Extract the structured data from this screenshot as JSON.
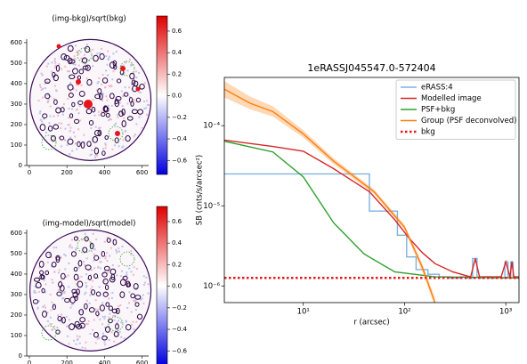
{
  "chart_data": [
    {
      "type": "image",
      "title": "(img-bkg)/sqrt(bkg)",
      "xlim": [
        -14,
        635
      ],
      "ylim": [
        0,
        617
      ],
      "xticks": [
        0,
        200,
        400,
        600
      ],
      "yticks": [
        0,
        100,
        200,
        300,
        400,
        500,
        600
      ],
      "cbar_lim": [
        -0.73,
        0.74
      ],
      "cbar_ticks": [
        0.6,
        0.4,
        0.2,
        {
          "value": 0,
          "label": "0.0"
        },
        {
          "value": -0.2,
          "label": "−0.2"
        },
        {
          "value": -0.4,
          "label": "−0.4"
        },
        {
          "value": -0.6,
          "label": "−0.6"
        }
      ]
    },
    {
      "type": "image",
      "title": "(img-model)/sqrt(model)",
      "xlim": [
        -14,
        635
      ],
      "ylim": [
        0,
        617
      ],
      "xticks": [
        0,
        200,
        400,
        600
      ],
      "yticks": [
        0,
        100,
        200,
        300,
        400,
        500,
        600
      ],
      "cbar_lim": [
        -0.73,
        0.74
      ],
      "cbar_ticks": [
        0.6,
        0.4,
        0.2,
        {
          "value": 0,
          "label": "0.0"
        },
        {
          "value": -0.2,
          "label": "−0.2"
        },
        {
          "value": -0.4,
          "label": "−0.4"
        },
        {
          "value": -0.6,
          "label": "−0.6"
        }
      ]
    },
    {
      "type": "line",
      "title": "1eRASSJ045547.0-572404",
      "x_label": "r (arcsec)",
      "y_label": "SB (cnts/s/arcsec²)",
      "log_x": true,
      "log_y": true,
      "legend": "upper right",
      "xlim": [
        1.66,
        1350
      ],
      "ylim": [
        6.2e-07,
        0.0004
      ],
      "xticks": [
        {
          "value": 10,
          "label": "10¹"
        },
        {
          "value": 100,
          "label": "10²"
        },
        {
          "value": 1000,
          "label": "10³"
        }
      ],
      "yticks": [
        {
          "value": 1e-06,
          "label": "10⁻⁶"
        },
        {
          "value": 1e-05,
          "label": "10⁻⁵"
        },
        {
          "value": 0.0001,
          "label": "10⁻⁴"
        }
      ],
      "series": [
        {
          "name": "eRASS:4",
          "color": "#7fb2e0",
          "style": "steps",
          "x": [
            1.66,
            45,
            85,
            105,
            130,
            170,
            220,
            280,
            350,
            420,
            470,
            520,
            560,
            620,
            700,
            800,
            900,
            980,
            1050,
            1120,
            1180,
            1250,
            1350
          ],
          "values": [
            2.5e-05,
            8.6e-06,
            4.3e-06,
            2.3e-06,
            1.6e-06,
            1.4e-06,
            1.3e-06,
            1.25e-06,
            1.3e-06,
            1.25e-06,
            2.2e-06,
            1.3e-06,
            1.25e-06,
            1.3e-06,
            1.25e-06,
            1.3e-06,
            1.25e-06,
            2e-06,
            1.3e-06,
            2e-06,
            1.3e-06,
            1.25e-06,
            1.25e-06
          ]
        },
        {
          "name": "Modelled image",
          "color": "#d62728",
          "style": "line",
          "x": [
            1.66,
            5,
            10,
            20,
            45,
            80,
            110,
            150,
            200,
            300,
            400,
            450,
            500,
            550,
            600,
            700,
            800,
            900,
            1000,
            1100,
            1150,
            1200,
            1350
          ],
          "values": [
            6.6e-05,
            5.5e-05,
            4.8e-05,
            2.9e-05,
            1.5e-05,
            6.7e-06,
            4e-06,
            2.6e-06,
            1.9e-06,
            1.5e-06,
            1.35e-06,
            1.3e-06,
            2.2e-06,
            1.3e-06,
            1.3e-06,
            1.3e-06,
            1.3e-06,
            1.3e-06,
            2e-06,
            1.3e-06,
            2e-06,
            1.3e-06,
            1.3e-06
          ]
        },
        {
          "name": "PSF+bkg",
          "color": "#2ca02c",
          "style": "line",
          "x": [
            1.66,
            5,
            10,
            20,
            40,
            80,
            200,
            1350
          ],
          "values": [
            6.4e-05,
            4.7e-05,
            2.3e-05,
            6.1e-06,
            2.5e-06,
            1.5e-06,
            1.3e-06,
            1.26e-06
          ]
        },
        {
          "name": "Group (PSF deconvolved)",
          "color": "#ff7f0e",
          "style": "line",
          "x": [
            1.66,
            3,
            5,
            10,
            20,
            50,
            100,
            150,
            200
          ],
          "values": [
            0.000285,
            0.00019,
            0.00015,
            7.9e-05,
            3.6e-05,
            1.5e-05,
            5.4e-06,
            1.7e-06,
            6.2e-07
          ],
          "upper": [
            0.00036,
            0.00023,
            0.000175,
            8.8e-05,
            3.9e-05,
            1.6e-05,
            5.8e-06,
            1.9e-06,
            7e-07
          ],
          "lower": [
            0.000225,
            0.00016,
            0.00013,
            7.1e-05,
            3.3e-05,
            1.4e-05,
            5e-06,
            1.5e-06,
            5.5e-07
          ]
        },
        {
          "name": "bkg",
          "color": "#e31a1c",
          "style": "dotted",
          "x": [
            1.66,
            1350
          ],
          "values": [
            1.26e-06,
            1.26e-06
          ]
        }
      ]
    }
  ]
}
